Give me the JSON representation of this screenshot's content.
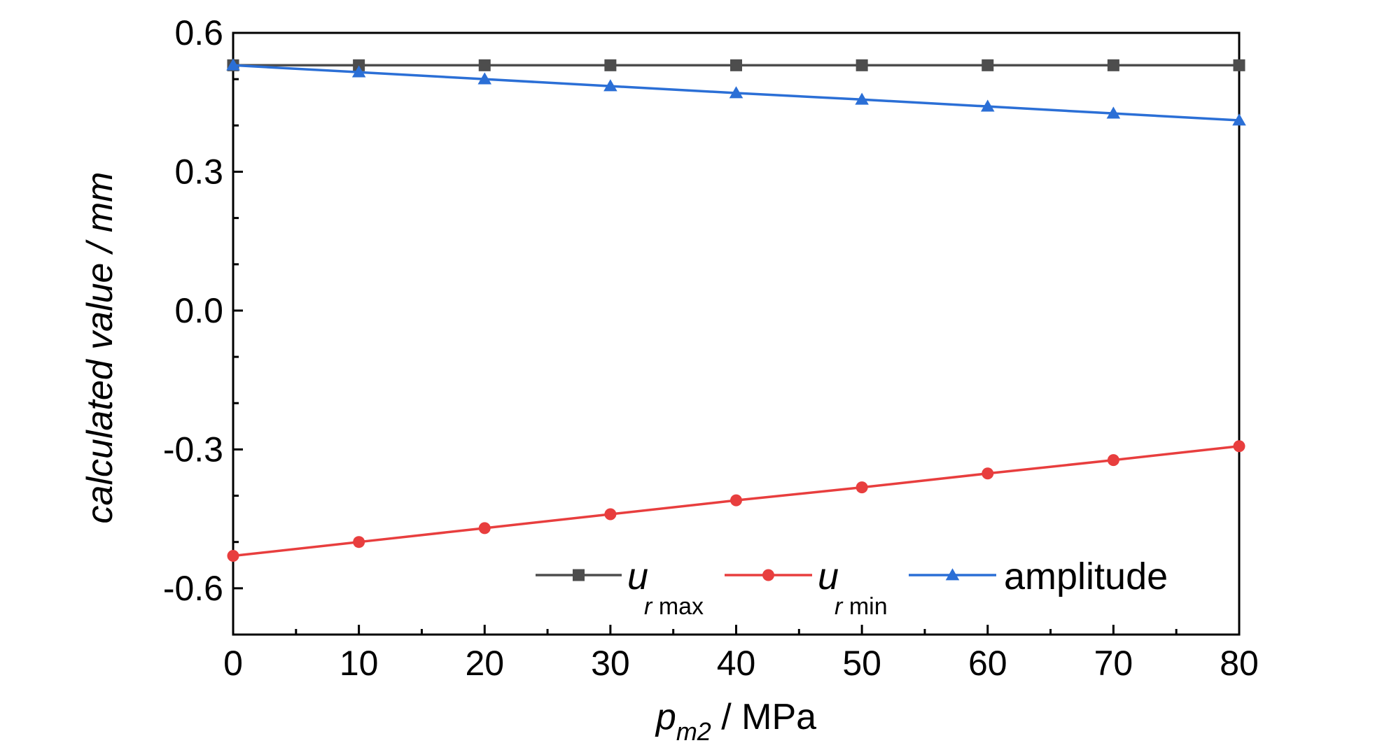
{
  "chart_data": {
    "type": "line",
    "x": [
      0,
      10,
      20,
      30,
      40,
      50,
      60,
      70,
      80
    ],
    "x_tick_labels": [
      "0",
      "10",
      "20",
      "30",
      "40",
      "50",
      "60",
      "70",
      "80"
    ],
    "y_tick_labels": [
      "0.6",
      "0.3",
      "0.0",
      "-0.3",
      "-0.6"
    ],
    "xlim": [
      0,
      80
    ],
    "ylim": [
      -0.7,
      0.6
    ],
    "xlabel": {
      "var": "p",
      "sub": "m2",
      "unit": " / MPa"
    },
    "ylabel": "calculated value / mm",
    "grid": false,
    "legend_position": "bottom-right",
    "series": [
      {
        "key": "ur-max",
        "legend": {
          "var": "u",
          "sub_italic": "r",
          "sub": " max"
        },
        "marker": "square",
        "color": "#4d4d4d",
        "values": [
          0.53,
          0.53,
          0.53,
          0.53,
          0.53,
          0.53,
          0.53,
          0.53,
          0.53
        ]
      },
      {
        "key": "ur-min",
        "legend": {
          "var": "u",
          "sub_italic": "r",
          "sub": " min"
        },
        "marker": "circle",
        "color": "#e83e3e",
        "values": [
          -0.53,
          -0.5,
          -0.47,
          -0.44,
          -0.41,
          -0.382,
          -0.352,
          -0.323,
          -0.293
        ]
      },
      {
        "key": "amplitude",
        "legend": {
          "label": "amplitude"
        },
        "marker": "triangle",
        "color": "#2b6fd6",
        "values": [
          0.53,
          0.515,
          0.5,
          0.485,
          0.47,
          0.456,
          0.441,
          0.426,
          0.411
        ]
      }
    ]
  }
}
